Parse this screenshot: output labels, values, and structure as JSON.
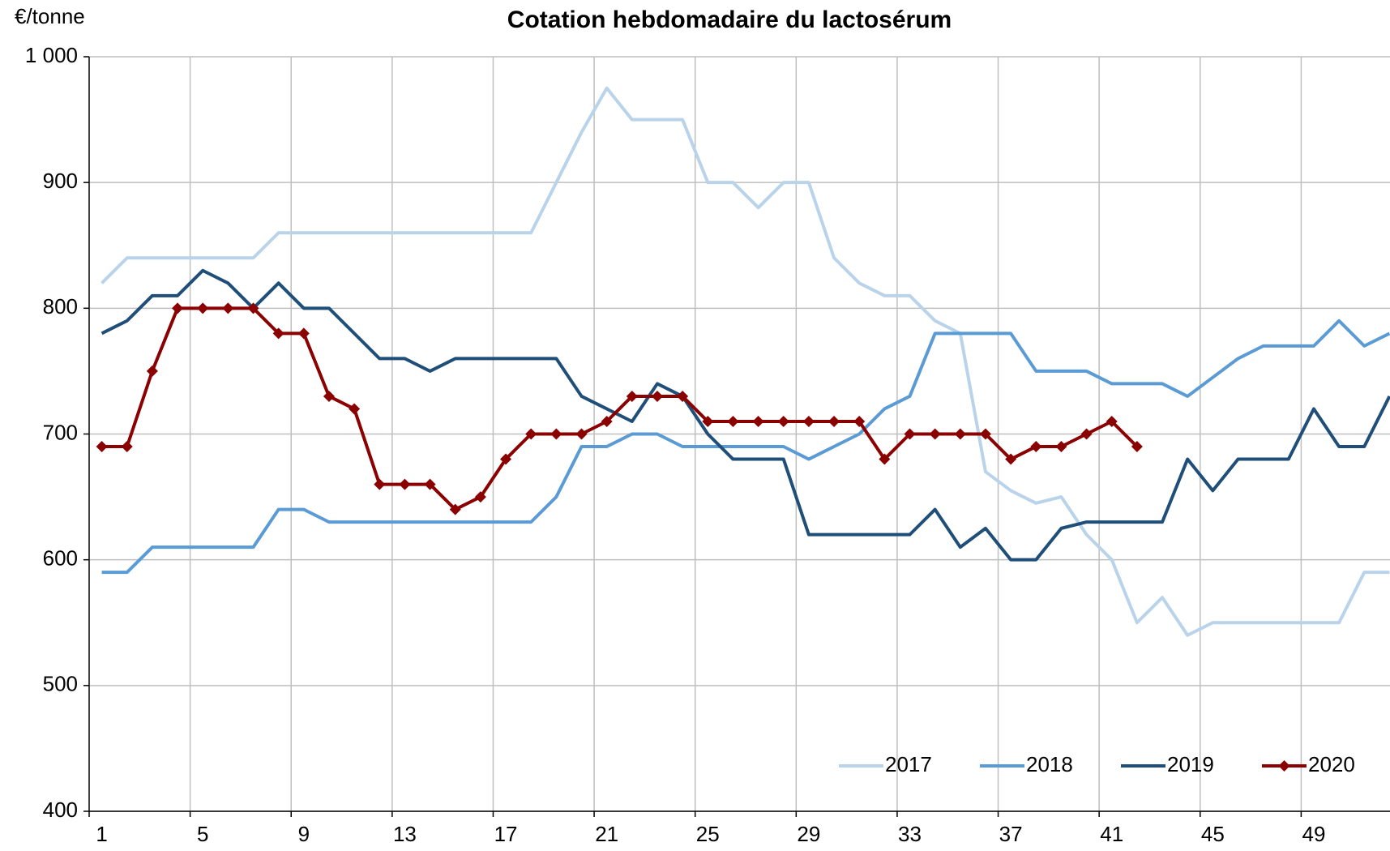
{
  "chart_data": {
    "type": "line",
    "title": "Cotation hebdomadaire du lactosérum",
    "y_label": "€/tonne",
    "categories": [
      1,
      null,
      null,
      null,
      5,
      null,
      null,
      null,
      9,
      null,
      null,
      null,
      13,
      null,
      null,
      null,
      17,
      null,
      null,
      null,
      21,
      null,
      null,
      null,
      25,
      null,
      null,
      null,
      29,
      null,
      null,
      null,
      33,
      null,
      null,
      null,
      37,
      null,
      null,
      null,
      41,
      null,
      null,
      null,
      45,
      null,
      null,
      null,
      49,
      null,
      null,
      null
    ],
    "ylim": [
      400,
      1000
    ],
    "yticks": [
      400,
      500,
      600,
      700,
      800,
      900,
      {
        "value": 1000,
        "label": "1 000"
      }
    ],
    "grid": true,
    "legend": "lower right",
    "series": [
      {
        "name": "2017",
        "color": "#b9d3ea",
        "values": [
          820,
          840,
          840,
          840,
          840,
          840,
          840,
          860,
          860,
          860,
          860,
          860,
          860,
          860,
          860,
          860,
          860,
          860,
          900,
          940,
          975,
          950,
          950,
          950,
          900,
          900,
          880,
          900,
          900,
          840,
          820,
          810,
          810,
          790,
          780,
          670,
          655,
          645,
          650,
          620,
          600,
          550,
          570,
          540,
          550,
          550,
          550,
          550,
          550,
          550,
          590,
          590
        ]
      },
      {
        "name": "2018",
        "color": "#5b9bd5",
        "values": [
          590,
          590,
          610,
          610,
          610,
          610,
          610,
          640,
          640,
          630,
          630,
          630,
          630,
          630,
          630,
          630,
          630,
          630,
          650,
          690,
          690,
          700,
          700,
          690,
          690,
          690,
          690,
          690,
          680,
          690,
          700,
          720,
          730,
          780,
          780,
          780,
          780,
          750,
          750,
          750,
          740,
          740,
          740,
          730,
          745,
          760,
          770,
          770,
          770,
          790,
          770,
          780
        ]
      },
      {
        "name": "2019",
        "color": "#1f4e79",
        "values": [
          780,
          790,
          810,
          810,
          830,
          820,
          800,
          820,
          800,
          800,
          780,
          760,
          760,
          750,
          760,
          760,
          760,
          760,
          760,
          730,
          720,
          710,
          740,
          730,
          700,
          680,
          680,
          680,
          620,
          620,
          620,
          620,
          620,
          640,
          610,
          625,
          600,
          600,
          625,
          630,
          630,
          630,
          630,
          680,
          655,
          680,
          680,
          680,
          720,
          690,
          690,
          730
        ]
      },
      {
        "name": "2020",
        "color": "#8b0000",
        "marker": "diamond",
        "values": [
          690,
          690,
          750,
          800,
          800,
          800,
          800,
          780,
          780,
          730,
          720,
          660,
          660,
          660,
          640,
          650,
          680,
          700,
          700,
          700,
          710,
          730,
          730,
          730,
          710,
          710,
          710,
          710,
          710,
          710,
          710,
          680,
          700,
          700,
          700,
          700,
          680,
          690,
          690,
          700,
          710,
          690,
          null,
          null,
          null,
          null,
          null,
          null,
          null,
          null,
          null,
          null
        ]
      }
    ]
  }
}
